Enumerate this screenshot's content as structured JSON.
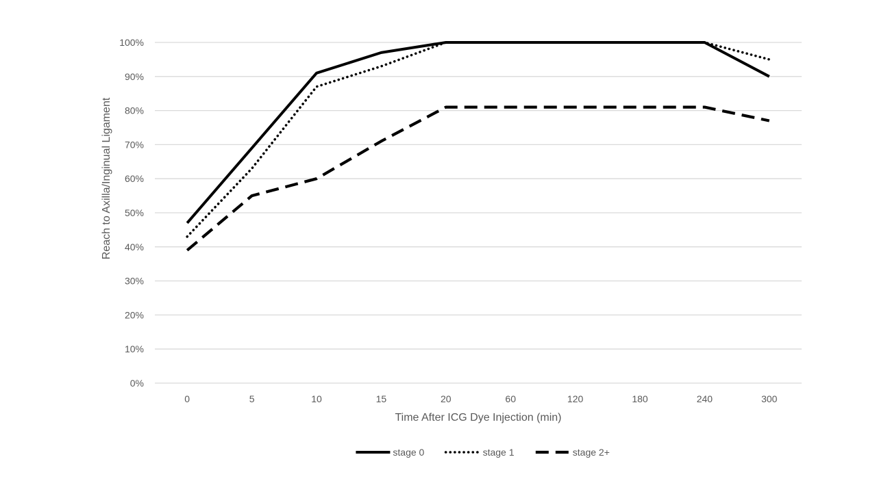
{
  "chart_data": {
    "type": "line",
    "title": "",
    "xlabel": "Time After ICG Dye Injection (min)",
    "ylabel": "Reach to Axilla/Inginual Ligament",
    "categories": [
      "0",
      "5",
      "10",
      "15",
      "20",
      "60",
      "120",
      "180",
      "240",
      "300"
    ],
    "y_ticks": [
      "0%",
      "10%",
      "20%",
      "30%",
      "40%",
      "50%",
      "60%",
      "70%",
      "80%",
      "90%",
      "100%"
    ],
    "ylim": [
      0,
      100
    ],
    "y_unit": "%",
    "grid": "horizontal",
    "legend_position": "bottom",
    "series": [
      {
        "name": "stage 0",
        "style": "solid",
        "color": "#000000",
        "values": [
          47,
          69,
          91,
          97,
          100,
          100,
          100,
          100,
          100,
          90
        ]
      },
      {
        "name": "stage 1",
        "style": "dotted",
        "color": "#000000",
        "values": [
          43,
          63,
          87,
          93,
          100,
          100,
          100,
          100,
          100,
          95
        ]
      },
      {
        "name": "stage 2+",
        "style": "dashed",
        "color": "#000000",
        "values": [
          39,
          55,
          60,
          71,
          81,
          81,
          81,
          81,
          81,
          77
        ]
      }
    ],
    "colors": {
      "gridline": "#d9d9d9",
      "text": "#595959"
    }
  }
}
